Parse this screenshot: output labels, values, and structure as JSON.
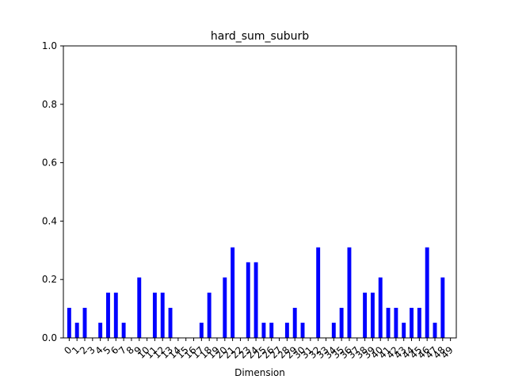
{
  "chart_data": {
    "type": "bar",
    "title": "hard_sum_suburb",
    "xlabel": "Dimension",
    "ylabel": "",
    "ylim": [
      0,
      1.0
    ],
    "yticks": [
      "0.0",
      "0.2",
      "0.4",
      "0.6",
      "0.8",
      "1.0"
    ],
    "categories": [
      "0",
      "1",
      "2",
      "3",
      "4",
      "5",
      "6",
      "7",
      "8",
      "9",
      "10",
      "11",
      "12",
      "13",
      "14",
      "15",
      "16",
      "17",
      "18",
      "19",
      "20",
      "21",
      "22",
      "23",
      "24",
      "25",
      "26",
      "27",
      "28",
      "29",
      "30",
      "31",
      "32",
      "33",
      "34",
      "35",
      "36",
      "37",
      "38",
      "39",
      "40",
      "41",
      "42",
      "43",
      "44",
      "45",
      "46",
      "47",
      "48",
      "49"
    ],
    "values": [
      0.103,
      0.052,
      0.103,
      0,
      0.052,
      0.155,
      0.155,
      0.052,
      0,
      0.207,
      0,
      0.155,
      0.155,
      0.103,
      0,
      0,
      0,
      0.052,
      0.155,
      0,
      0.207,
      0.31,
      0,
      0.259,
      0.259,
      0.052,
      0.052,
      0,
      0.052,
      0.103,
      0.052,
      0,
      0.31,
      0,
      0.052,
      0.103,
      0.31,
      0,
      0.155,
      0.155,
      0.207,
      0.103,
      0.103,
      0.052,
      0.103,
      0.103,
      0.31,
      0.052,
      0.207,
      0
    ],
    "bar_color": "#0000ff",
    "grid": false,
    "legend": "none"
  }
}
